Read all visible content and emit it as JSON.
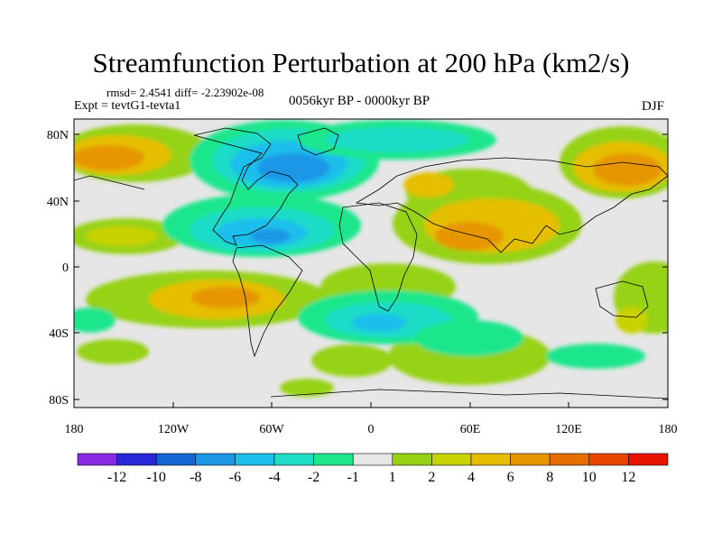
{
  "header": {
    "title": "Streamfunction Perturbation at 200 hPa (km2/s)",
    "stats": "rmsd= 2.4541 diff= -2.23902e-08",
    "experiment": "Expt = tevtG1-tevta1",
    "period": "0056kyr BP - 0000kyr BP",
    "season": "DJF"
  },
  "axes": {
    "y_ticks": [
      "80N",
      "40N",
      "0",
      "40S",
      "80S"
    ],
    "x_ticks": [
      "180",
      "120W",
      "60W",
      "0",
      "60E",
      "120E",
      "180"
    ]
  },
  "colorbar": {
    "colors": [
      "#8a2be2",
      "#2828d8",
      "#1464d2",
      "#1e96e6",
      "#1ebeeb",
      "#1edcc8",
      "#1ee68c",
      "#e6e6e6",
      "#96d214",
      "#c8d200",
      "#e6be00",
      "#e69600",
      "#e66e00",
      "#e64600",
      "#e61400"
    ],
    "labels": [
      "-12",
      "-10",
      "-8",
      "-6",
      "-4",
      "-2",
      "-1",
      "1",
      "2",
      "4",
      "6",
      "8",
      "10",
      "12"
    ]
  }
}
